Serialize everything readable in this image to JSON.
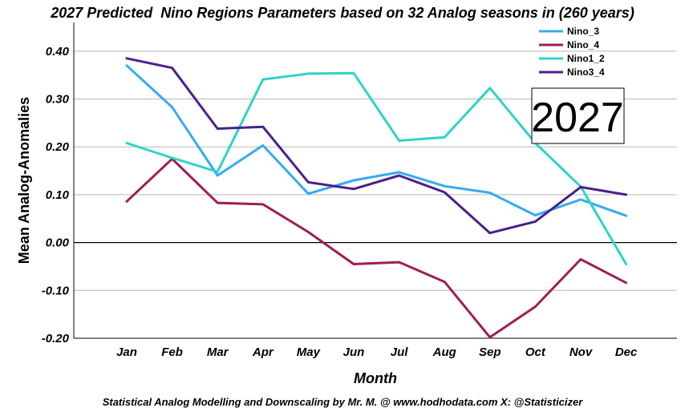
{
  "chart_data": {
    "type": "line",
    "title": "2027 Predicted  Nino Regions Parameters based on 32 Analog seasons in (260 years)",
    "xlabel": "Month",
    "ylabel": "Mean Analog-Anomalies",
    "categories": [
      "Jan",
      "Feb",
      "Mar",
      "Apr",
      "May",
      "Jun",
      "Jul",
      "Aug",
      "Sep",
      "Oct",
      "Nov",
      "Dec"
    ],
    "ylim": [
      -0.2,
      0.45
    ],
    "yticks": [
      -0.2,
      -0.1,
      0.0,
      0.1,
      0.2,
      0.3,
      0.4
    ],
    "ytick_labels": [
      "-0.20",
      "-0.10",
      "0.00",
      "0.10",
      "0.20",
      "0.30",
      "0.40"
    ],
    "grid": true,
    "zero_line": true,
    "legend_position": "top-right",
    "annotation": "2027",
    "series": [
      {
        "name": "Nino_3",
        "color": "#35abf0",
        "values": [
          0.37,
          0.283,
          0.14,
          0.203,
          0.102,
          0.13,
          0.147,
          0.118,
          0.104,
          0.057,
          0.09,
          0.056
        ]
      },
      {
        "name": "Nino_4",
        "color": "#9c1f55",
        "values": [
          0.086,
          0.175,
          0.083,
          0.08,
          0.022,
          -0.045,
          -0.041,
          -0.082,
          -0.198,
          -0.134,
          -0.035,
          -0.084
        ]
      },
      {
        "name": "Nino1_2",
        "color": "#2ed3c9",
        "values": [
          0.208,
          0.177,
          0.148,
          0.341,
          0.353,
          0.354,
          0.213,
          0.22,
          0.323,
          0.208,
          0.117,
          -0.045
        ]
      },
      {
        "name": "Nino3_4",
        "color": "#4b1f8c",
        "values": [
          0.385,
          0.365,
          0.238,
          0.242,
          0.126,
          0.112,
          0.14,
          0.105,
          0.02,
          0.044,
          0.116,
          0.1
        ]
      }
    ]
  },
  "footer": {
    "credit": "Statistical Analog Modelling and Downscaling by Mr. M. @ www.hodhodata.com X: @Statisticizer"
  }
}
